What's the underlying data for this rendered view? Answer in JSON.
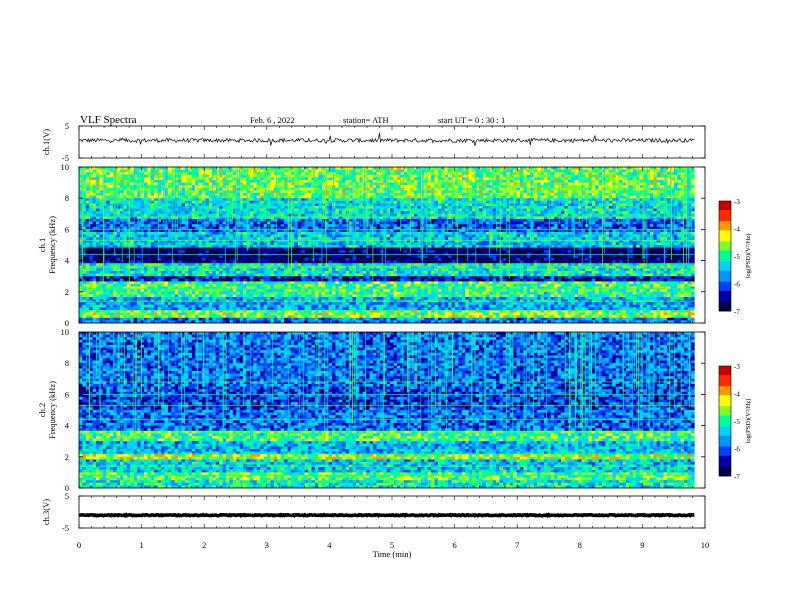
{
  "header": {
    "title": "VLF  Spectra",
    "date": "Feb. 6  , 2022",
    "station": "station= ATH",
    "start": "start  UT  =    0  : 30 : 1"
  },
  "colors": {
    "cmap": [
      "#00004a",
      "#0000a8",
      "#0040ff",
      "#0096ff",
      "#00d2ff",
      "#00ff9a",
      "#7aff28",
      "#ffff00",
      "#ff9800",
      "#ff2a00",
      "#c80000",
      "#ffffff"
    ],
    "trace": "#000000",
    "axis": "#000000"
  },
  "chart_data": [
    {
      "type": "line",
      "name": "ch.1 waveform",
      "ylabel": "ch.1(V)",
      "ylim": [
        -5,
        5
      ],
      "yticks": [
        "5",
        "-5"
      ],
      "x_range_min": [
        0,
        9.83
      ],
      "approx_level": 0.5,
      "noise_amplitude": 0.6
    },
    {
      "type": "heatmap",
      "name": "ch.1 spectrogram",
      "ylabel": "ch.1\nFrequency  (kHz)",
      "ylim": [
        0,
        10
      ],
      "yticks": [
        "0",
        "2",
        "4",
        "6",
        "8",
        "10"
      ],
      "x_range_min": [
        0,
        9.83
      ],
      "log_psd_range": [
        -7,
        -3
      ],
      "bands_khz_level": [
        {
          "f0": 0.0,
          "f1": 0.4,
          "level": -5.8
        },
        {
          "f0": 0.4,
          "f1": 0.8,
          "level": -4.6
        },
        {
          "f0": 0.8,
          "f1": 1.6,
          "level": -5.6
        },
        {
          "f0": 1.6,
          "f1": 2.6,
          "level": -4.9
        },
        {
          "f0": 2.6,
          "f1": 3.0,
          "level": -6.4
        },
        {
          "f0": 3.0,
          "f1": 3.8,
          "level": -5.2
        },
        {
          "f0": 3.8,
          "f1": 4.9,
          "level": -6.8
        },
        {
          "f0": 4.9,
          "f1": 5.8,
          "level": -5.4
        },
        {
          "f0": 5.8,
          "f1": 6.6,
          "level": -6.0
        },
        {
          "f0": 6.6,
          "f1": 8.0,
          "level": -5.3
        },
        {
          "f0": 8.0,
          "f1": 10.0,
          "level": -4.7
        }
      ]
    },
    {
      "type": "heatmap",
      "name": "ch.2 spectrogram",
      "ylabel": "ch.2\nFrequency  (kHz)",
      "ylim": [
        0,
        10
      ],
      "yticks": [
        "0",
        "2",
        "4",
        "6",
        "8",
        "10"
      ],
      "x_range_min": [
        0,
        9.83
      ],
      "log_psd_range": [
        -7,
        -3
      ],
      "bands_khz_level": [
        {
          "f0": 0.0,
          "f1": 0.5,
          "level": -5.2
        },
        {
          "f0": 0.5,
          "f1": 1.0,
          "level": -4.8
        },
        {
          "f0": 1.0,
          "f1": 1.8,
          "level": -5.4
        },
        {
          "f0": 1.8,
          "f1": 2.2,
          "level": -4.5
        },
        {
          "f0": 2.2,
          "f1": 3.0,
          "level": -5.5
        },
        {
          "f0": 3.0,
          "f1": 3.6,
          "level": -4.9
        },
        {
          "f0": 3.6,
          "f1": 5.0,
          "level": -5.9
        },
        {
          "f0": 5.0,
          "f1": 6.5,
          "level": -6.1
        },
        {
          "f0": 6.5,
          "f1": 10.0,
          "level": -5.9
        }
      ]
    },
    {
      "type": "line",
      "name": "ch.3 waveform",
      "ylabel": "ch.3(V)",
      "ylim": [
        -5,
        5
      ],
      "yticks": [
        "5",
        "-5"
      ],
      "x_range_min": [
        0,
        9.83
      ],
      "approx_level": -1.0,
      "noise_amplitude": 0.15
    }
  ],
  "xaxis": {
    "label": "Time  (min)",
    "range": [
      0,
      10
    ],
    "ticks": [
      "0",
      "1",
      "2",
      "3",
      "4",
      "5",
      "6",
      "7",
      "8",
      "9",
      "10"
    ]
  },
  "colorbars": [
    {
      "label": "log(PSD)(V²/Hz)",
      "range": [
        -7,
        -3
      ],
      "ticks": [
        "-3",
        "-4",
        "-5",
        "-6",
        "-7"
      ]
    },
    {
      "label": "log(PSD)(V²/Hz)",
      "range": [
        -7,
        -3
      ],
      "ticks": [
        "-3",
        "-4",
        "-5",
        "-6",
        "-7"
      ]
    }
  ]
}
